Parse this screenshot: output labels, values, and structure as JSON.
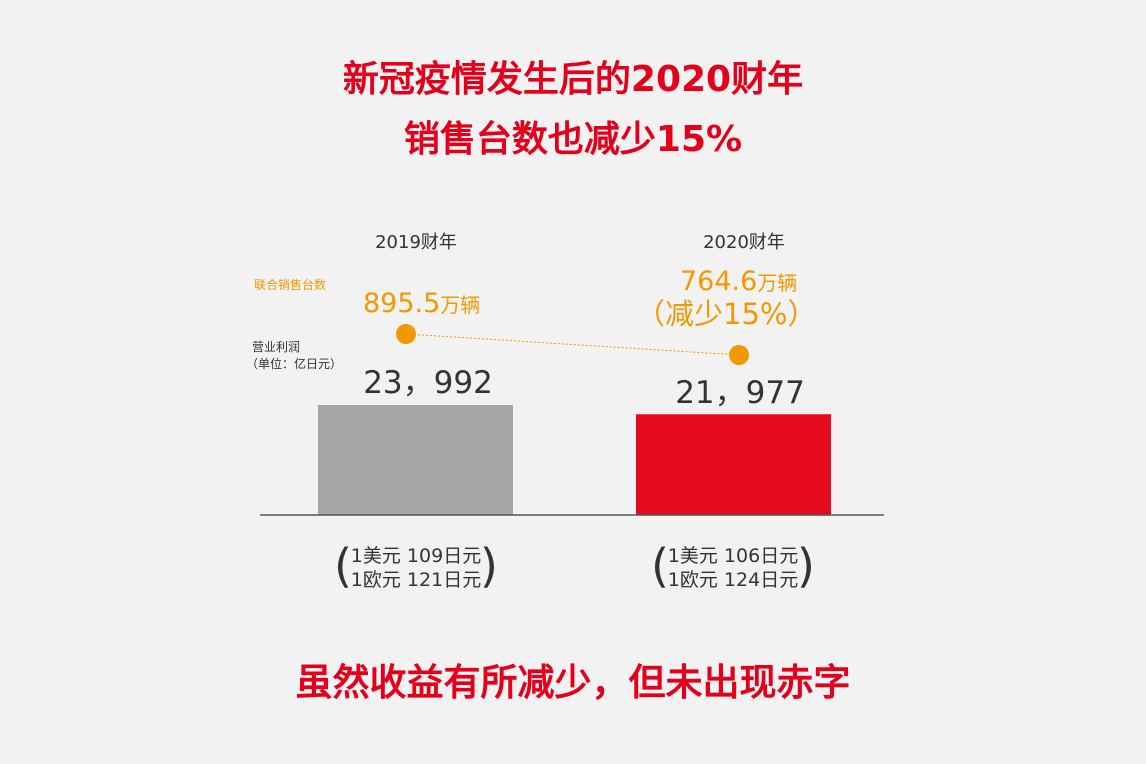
{
  "header": {
    "title_line1": "新冠疫情发生后的2020财年",
    "title_line2": "销售台数也减少15%"
  },
  "footer": {
    "text": "虽然收益有所减少，但未出现赤字"
  },
  "labels": {
    "units_series": "联合销售台数",
    "profit_series": "营业利润",
    "profit_unit": "（单位：亿日元）"
  },
  "chart_data": {
    "type": "bar",
    "categories": [
      "2019财年",
      "2020财年"
    ],
    "series": [
      {
        "name": "营业利润",
        "values": [
          23992,
          21977
        ],
        "value_labels": [
          "23，992",
          "21，977"
        ],
        "colors": [
          "#a6a6a6",
          "#e60a1e"
        ]
      },
      {
        "name": "联合销售台数",
        "values": [
          895.5,
          764.6
        ],
        "value_labels": [
          "895.5",
          "764.6"
        ],
        "unit": "万辆",
        "color": "#f39800"
      }
    ],
    "annotations": {
      "reduction": "（减少15%）",
      "exchange_rates": [
        [
          "1美元 109日元",
          "1欧元 121日元"
        ],
        [
          "1美元 106日元",
          "1欧元 124日元"
        ]
      ]
    }
  }
}
